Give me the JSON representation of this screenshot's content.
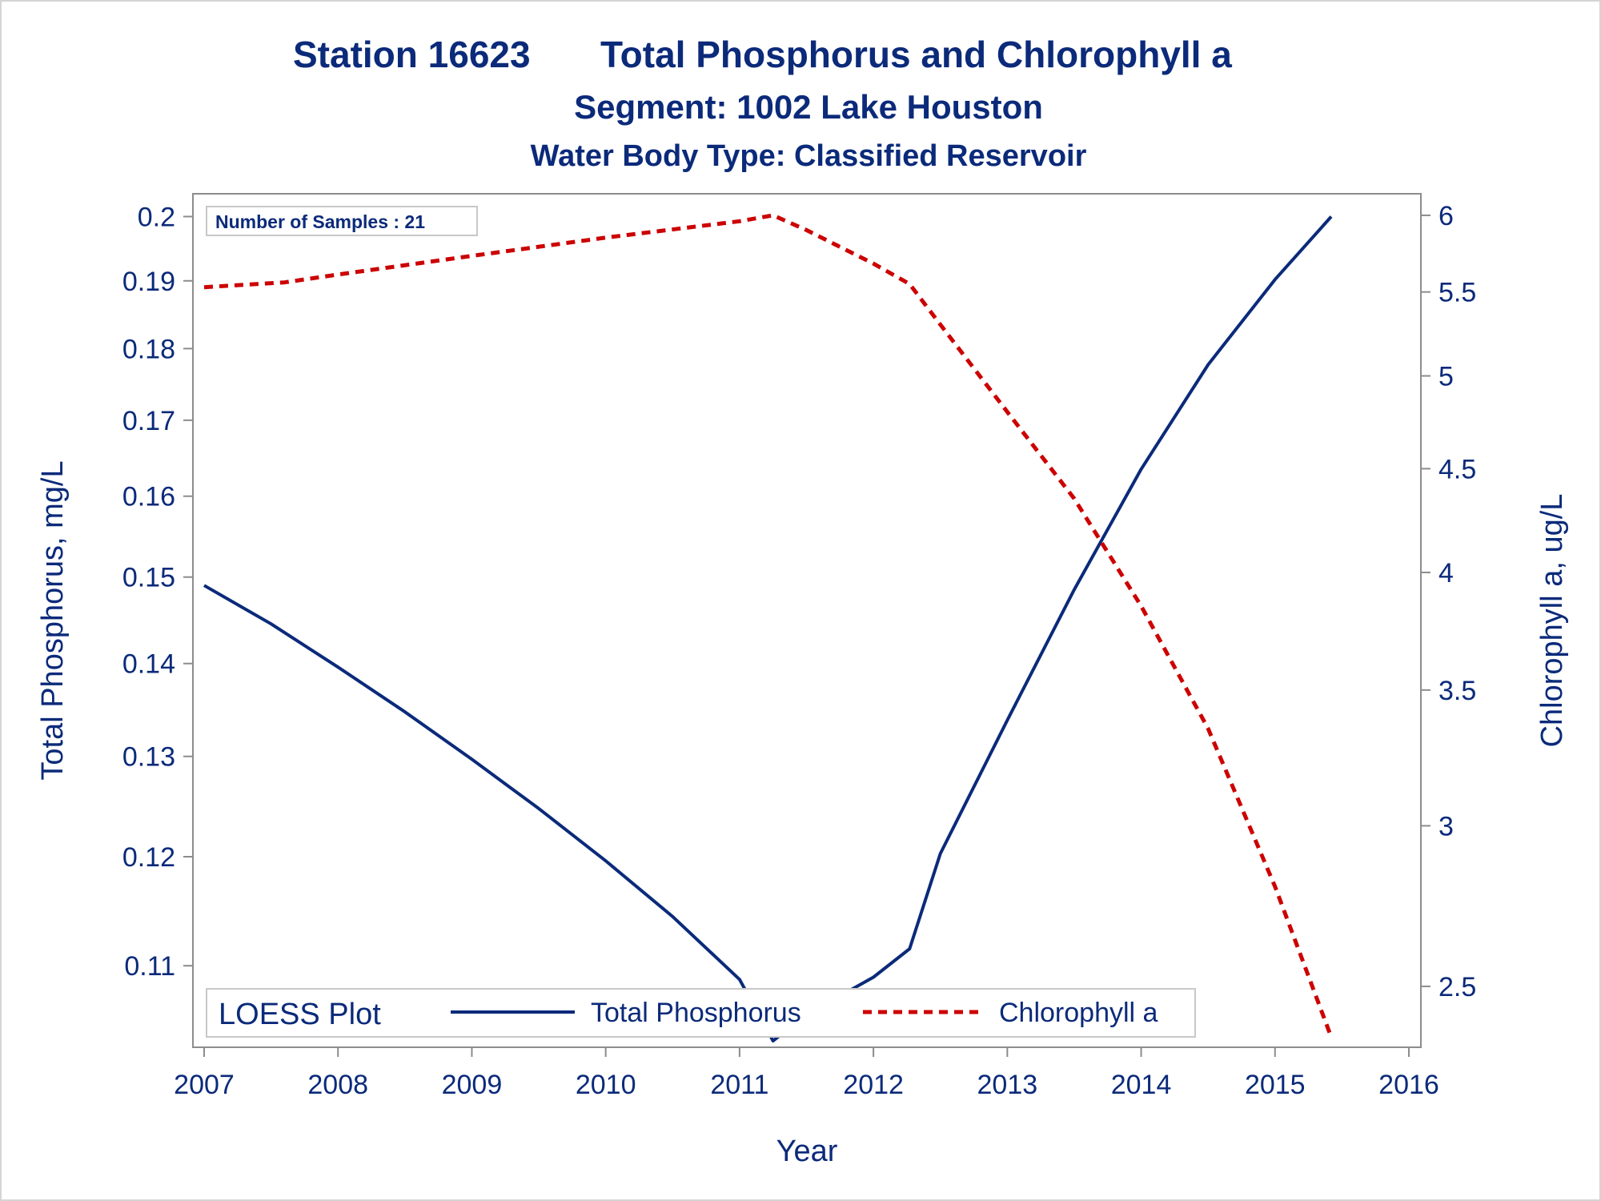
{
  "titles": {
    "line1_part1": "Station 16623",
    "line1_part2": "Total Phosphorus and Chlorophyll a",
    "line2": "Segment: 1002  Lake Houston",
    "line3": "Water Body Type: Classified Reservoir"
  },
  "inset_text": "Number of Samples : 21",
  "legend": {
    "title": "LOESS Plot",
    "entries": [
      "Total Phosphorus",
      "Chlorophyll a"
    ]
  },
  "colors": {
    "text": "#0b2a7a",
    "phosphorus": "#0b2a7a",
    "chlorophyll": "#cc0000",
    "axis": "#8c8c8c"
  },
  "chart_data": {
    "type": "line",
    "xlabel": "Year",
    "ylabel_left": "Total Phosphorus, mg/L",
    "ylabel_right": "Chlorophyll a, ug/L",
    "y_scale": "log",
    "xlim": [
      2007,
      2016
    ],
    "x_ticks": [
      2007,
      2008,
      2009,
      2010,
      2011,
      2012,
      2013,
      2014,
      2015,
      2016
    ],
    "ylim_left": [
      0.1036,
      0.2016
    ],
    "yticks_left": [
      0.11,
      0.12,
      0.13,
      0.14,
      0.15,
      0.16,
      0.17,
      0.18,
      0.19,
      0.2
    ],
    "yticks_left_labels": [
      "0.11",
      "0.12",
      "0.13",
      "0.14",
      "0.15",
      "0.16",
      "0.17",
      "0.18",
      "0.19",
      "0.2"
    ],
    "ylim_right": [
      2.35,
      6.06
    ],
    "yticks_right": [
      2.5,
      3,
      3.5,
      4,
      4.5,
      5,
      5.5,
      6
    ],
    "yticks_right_labels": [
      "2.5",
      "3",
      "3.5",
      "4",
      "4.5",
      "5",
      "5.5",
      "6"
    ],
    "legend_position": "bottom-left inside",
    "grid": false,
    "series": [
      {
        "name": "Total Phosphorus",
        "axis": "left",
        "style": "solid",
        "x": [
          2007.0,
          2007.5,
          2008.0,
          2008.5,
          2009.0,
          2009.5,
          2010.0,
          2010.5,
          2011.0,
          2011.25,
          2011.5,
          2012.0,
          2012.27,
          2012.5,
          2013.0,
          2013.5,
          2014.0,
          2014.5,
          2015.0,
          2015.42
        ],
        "y": [
          0.149,
          0.1445,
          0.1396,
          0.1347,
          0.1297,
          0.1247,
          0.1196,
          0.1144,
          0.1088,
          0.1036,
          0.1058,
          0.109,
          0.1115,
          0.1203,
          0.1338,
          0.1485,
          0.1635,
          0.1777,
          0.1902,
          0.2
        ]
      },
      {
        "name": "Chlorophyll a",
        "axis": "right",
        "style": "dashed",
        "x": [
          2007.0,
          2007.6,
          2008.0,
          2009.0,
          2010.0,
          2011.0,
          2011.25,
          2011.5,
          2012.0,
          2012.27,
          2012.5,
          2013.0,
          2013.5,
          2014.0,
          2014.5,
          2015.0,
          2015.42
        ],
        "y": [
          5.53,
          5.56,
          5.61,
          5.73,
          5.85,
          5.96,
          6.0,
          5.9,
          5.68,
          5.55,
          5.3,
          4.8,
          4.35,
          3.85,
          3.35,
          2.8,
          2.36
        ]
      }
    ]
  }
}
